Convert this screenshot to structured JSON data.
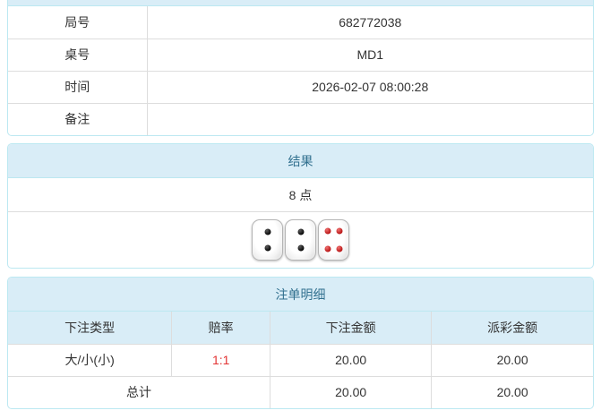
{
  "info_table": {
    "rows": [
      {
        "label": "局号",
        "value": "682772038"
      },
      {
        "label": "桌号",
        "value": "MD1"
      },
      {
        "label": "时间",
        "value": "2026-02-07 08:00:28"
      },
      {
        "label": "备注",
        "value": ""
      }
    ]
  },
  "result_panel": {
    "title": "结果",
    "points": "8 点",
    "dice": [
      {
        "value": 2,
        "color": "black"
      },
      {
        "value": 2,
        "color": "black"
      },
      {
        "value": 4,
        "color": "red"
      }
    ]
  },
  "bets_panel": {
    "title": "注单明细",
    "columns": [
      "下注类型",
      "赔率",
      "下注金额",
      "派彩金额"
    ],
    "rows": [
      {
        "type": "大/小(小)",
        "odds": "1:1",
        "bet": "20.00",
        "payout": "20.00"
      }
    ],
    "total": {
      "label": "总计",
      "bet": "20.00",
      "payout": "20.00"
    }
  },
  "colors": {
    "heading_bg": "#d9edf7",
    "panel_border": "#bce8f1",
    "heading_text": "#31708f",
    "cell_border": "#dddddd",
    "body_text": "#333333",
    "odds_red": "#e33434"
  }
}
